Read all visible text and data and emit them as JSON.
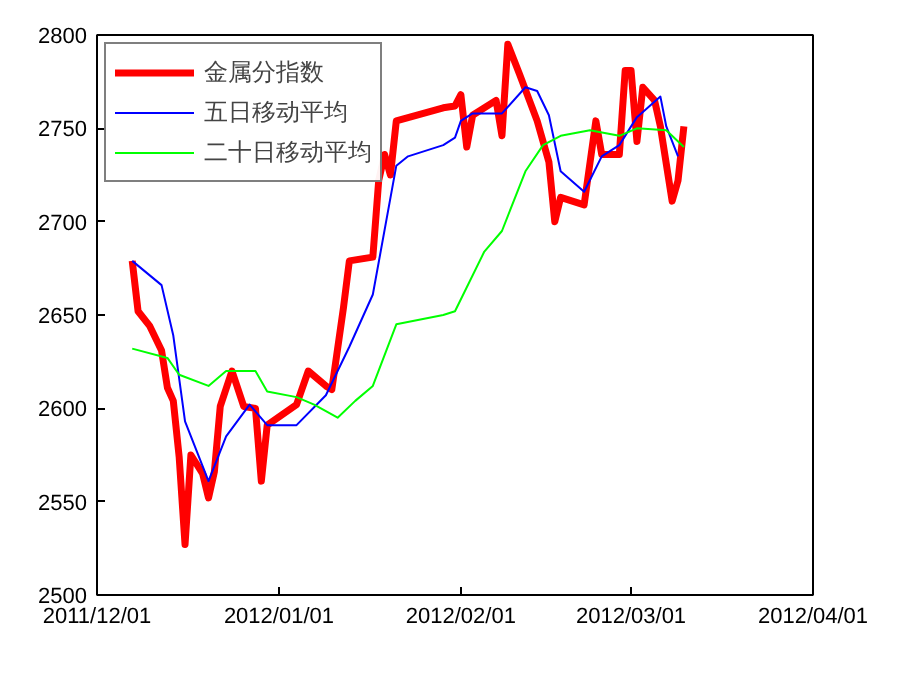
{
  "chart_data": {
    "type": "line",
    "xlim": [
      "2011-12-01",
      "2012-04-01"
    ],
    "xticks": [
      {
        "value": "2011-12-01",
        "label": "2011/12/01"
      },
      {
        "value": "2012-01-01",
        "label": "2012/01/01"
      },
      {
        "value": "2012-02-01",
        "label": "2012/02/01"
      },
      {
        "value": "2012-03-01",
        "label": "2012/03/01"
      },
      {
        "value": "2012-04-01",
        "label": "2012/04/01"
      }
    ],
    "ylim": [
      2500,
      2800
    ],
    "yticks": [
      2500,
      2550,
      2600,
      2650,
      2700,
      2750,
      2800
    ],
    "grid": false,
    "legend": "top left",
    "marker": "none",
    "line_style": "solid",
    "series": [
      {
        "name": "金属分指数",
        "color": "#ff0000",
        "x": [
          "2011-12-07",
          "2011-12-08",
          "2011-12-10",
          "2011-12-12",
          "2011-12-13",
          "2011-12-14",
          "2011-12-15",
          "2011-12-16",
          "2011-12-17",
          "2011-12-19",
          "2011-12-20",
          "2011-12-21",
          "2011-12-22",
          "2011-12-24",
          "2011-12-26",
          "2011-12-28",
          "2011-12-29",
          "2011-12-30",
          "2012-01-04",
          "2012-01-06",
          "2012-01-09",
          "2012-01-10",
          "2012-01-12",
          "2012-01-13",
          "2012-01-17",
          "2012-01-18",
          "2012-01-19",
          "2012-01-20",
          "2012-01-21",
          "2012-01-29",
          "2012-01-31",
          "2012-02-01",
          "2012-02-02",
          "2012-02-03",
          "2012-02-07",
          "2012-02-08",
          "2012-02-09",
          "2012-02-11",
          "2012-02-14",
          "2012-02-16",
          "2012-02-17",
          "2012-02-18",
          "2012-02-22",
          "2012-02-24",
          "2012-02-25",
          "2012-02-28",
          "2012-02-29",
          "2012-03-01",
          "2012-03-02",
          "2012-03-03",
          "2012-03-05",
          "2012-03-06",
          "2012-03-08",
          "2012-03-09",
          "2012-03-10"
        ],
        "values": [
          2679,
          2652,
          2644,
          2631,
          2611,
          2604,
          2574,
          2527,
          2575,
          2565,
          2552,
          2566,
          2601,
          2620,
          2601,
          2600,
          2561,
          2591,
          2602,
          2620,
          2612,
          2610,
          2654,
          2679,
          2681,
          2722,
          2736,
          2725,
          2754,
          2761,
          2762,
          2768,
          2740,
          2757,
          2765,
          2746,
          2795,
          2779,
          2754,
          2732,
          2700,
          2713,
          2709,
          2754,
          2736,
          2736,
          2781,
          2781,
          2743,
          2772,
          2765,
          2751,
          2711,
          2722,
          2751
        ]
      },
      {
        "name": "五日移动平均",
        "color": "#0000ff",
        "x": [
          "2011-12-07",
          "2011-12-12",
          "2011-12-14",
          "2011-12-16",
          "2011-12-20",
          "2011-12-23",
          "2011-12-27",
          "2011-12-30",
          "2012-01-04",
          "2012-01-09",
          "2012-01-13",
          "2012-01-17",
          "2012-01-21",
          "2012-01-23",
          "2012-01-29",
          "2012-01-31",
          "2012-02-01",
          "2012-02-03",
          "2012-02-08",
          "2012-02-12",
          "2012-02-14",
          "2012-02-16",
          "2012-02-18",
          "2012-02-22",
          "2012-02-25",
          "2012-02-28",
          "2012-03-02",
          "2012-03-06",
          "2012-03-07",
          "2012-03-09"
        ],
        "values": [
          2679,
          2666,
          2639,
          2593,
          2561,
          2585,
          2602,
          2591,
          2591,
          2607,
          2633,
          2661,
          2730,
          2735,
          2741,
          2745,
          2754,
          2758,
          2758,
          2772,
          2770,
          2757,
          2727,
          2716,
          2735,
          2741,
          2756,
          2767,
          2751,
          2735
        ]
      },
      {
        "name": "二十日移动平均",
        "color": "#00ff00",
        "x": [
          "2011-12-07",
          "2011-12-13",
          "2011-12-15",
          "2011-12-20",
          "2011-12-23",
          "2011-12-28",
          "2011-12-30",
          "2012-01-04",
          "2012-01-07",
          "2012-01-11",
          "2012-01-14",
          "2012-01-17",
          "2012-01-21",
          "2012-01-29",
          "2012-01-31",
          "2012-02-05",
          "2012-02-08",
          "2012-02-12",
          "2012-02-15",
          "2012-02-18",
          "2012-02-23",
          "2012-02-28",
          "2012-03-02",
          "2012-03-07",
          "2012-03-10"
        ],
        "values": [
          2632,
          2627,
          2618,
          2612,
          2620,
          2620,
          2609,
          2606,
          2602,
          2595,
          2604,
          2612,
          2645,
          2650,
          2652,
          2684,
          2695,
          2727,
          2741,
          2746,
          2749,
          2746,
          2750,
          2749,
          2740
        ]
      }
    ]
  }
}
